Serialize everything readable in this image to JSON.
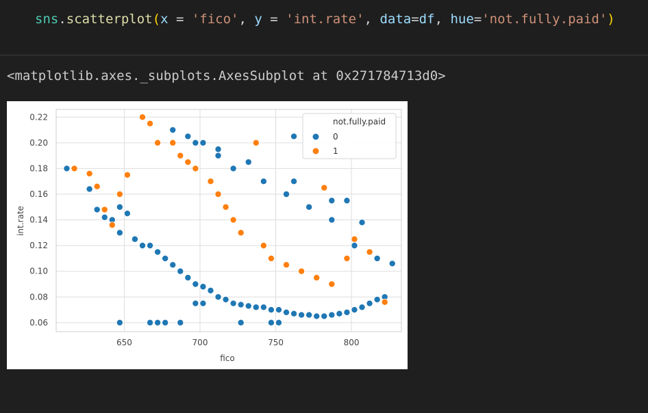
{
  "cell": {
    "code": {
      "module": "sns",
      "dot": ".",
      "method": "scatterplot",
      "open_paren": "(",
      "arg_x_name": "x",
      "eq1": " = ",
      "arg_x_val": "'fico'",
      "sep1": ", ",
      "arg_y_name": "y",
      "eq2": " = ",
      "arg_y_val": "'int.rate'",
      "sep2": ", ",
      "arg_data_name": "data",
      "eq3": "=",
      "arg_data_val": "df",
      "sep3": ", ",
      "arg_hue_name": "hue",
      "eq4": "=",
      "arg_hue_val": "'not.fully.paid'",
      "close_paren": ")"
    }
  },
  "output": {
    "text": "<matplotlib.axes._subplots.AxesSubplot at 0x271784713d0>"
  },
  "colors": {
    "series_0": "#1f77b4",
    "series_1": "#ff7f0e",
    "grid": "#dddddd",
    "background_plot": "#ffffff"
  },
  "chart_data": {
    "type": "scatter",
    "xlabel": "fico",
    "ylabel": "int.rate",
    "xlim": [
      605,
      833
    ],
    "ylim": [
      0.053,
      0.226
    ],
    "xticks": [
      650,
      700,
      750,
      800
    ],
    "yticks": [
      0.06,
      0.08,
      0.1,
      0.12,
      0.14,
      0.16,
      0.18,
      0.2,
      0.22
    ],
    "ytick_labels": [
      "0.06",
      "0.08",
      "0.10",
      "0.12",
      "0.14",
      "0.16",
      "0.18",
      "0.20",
      "0.22"
    ],
    "grid": true,
    "legend": {
      "title": "not.fully.paid",
      "placement": "top-right",
      "entries": [
        "0",
        "1"
      ]
    },
    "series": [
      {
        "name": "0",
        "x": [
          612,
          627,
          632,
          637,
          642,
          647,
          647,
          652,
          657,
          662,
          667,
          672,
          677,
          682,
          687,
          692,
          697,
          702,
          707,
          712,
          717,
          722,
          727,
          732,
          737,
          742,
          747,
          752,
          757,
          762,
          767,
          772,
          777,
          782,
          787,
          792,
          797,
          802,
          807,
          812,
          817,
          822,
          827,
          647,
          667,
          672,
          677,
          687,
          697,
          702,
          727,
          747,
          752,
          762,
          697,
          702,
          712,
          732,
          762,
          787,
          797,
          807,
          682,
          692,
          712,
          722,
          742,
          757,
          772,
          787,
          802,
          817
        ],
        "y": [
          0.18,
          0.164,
          0.148,
          0.142,
          0.14,
          0.15,
          0.13,
          0.145,
          0.125,
          0.12,
          0.12,
          0.115,
          0.11,
          0.105,
          0.1,
          0.095,
          0.09,
          0.088,
          0.085,
          0.08,
          0.078,
          0.075,
          0.074,
          0.073,
          0.072,
          0.072,
          0.07,
          0.07,
          0.068,
          0.067,
          0.066,
          0.066,
          0.065,
          0.065,
          0.066,
          0.067,
          0.068,
          0.07,
          0.072,
          0.075,
          0.078,
          0.08,
          0.106,
          0.06,
          0.06,
          0.06,
          0.06,
          0.06,
          0.075,
          0.075,
          0.06,
          0.06,
          0.06,
          0.205,
          0.2,
          0.2,
          0.19,
          0.185,
          0.17,
          0.155,
          0.155,
          0.138,
          0.21,
          0.205,
          0.195,
          0.18,
          0.17,
          0.16,
          0.15,
          0.14,
          0.12,
          0.11
        ]
      },
      {
        "name": "1",
        "x": [
          617,
          627,
          632,
          637,
          642,
          647,
          652,
          662,
          667,
          672,
          682,
          687,
          692,
          697,
          707,
          712,
          717,
          722,
          727,
          737,
          742,
          747,
          757,
          767,
          777,
          782,
          787,
          797,
          802,
          812,
          822
        ],
        "y": [
          0.18,
          0.176,
          0.166,
          0.148,
          0.136,
          0.16,
          0.175,
          0.22,
          0.215,
          0.2,
          0.2,
          0.19,
          0.185,
          0.18,
          0.17,
          0.16,
          0.15,
          0.14,
          0.13,
          0.2,
          0.12,
          0.11,
          0.105,
          0.1,
          0.095,
          0.165,
          0.09,
          0.11,
          0.125,
          0.115,
          0.076
        ]
      }
    ]
  }
}
